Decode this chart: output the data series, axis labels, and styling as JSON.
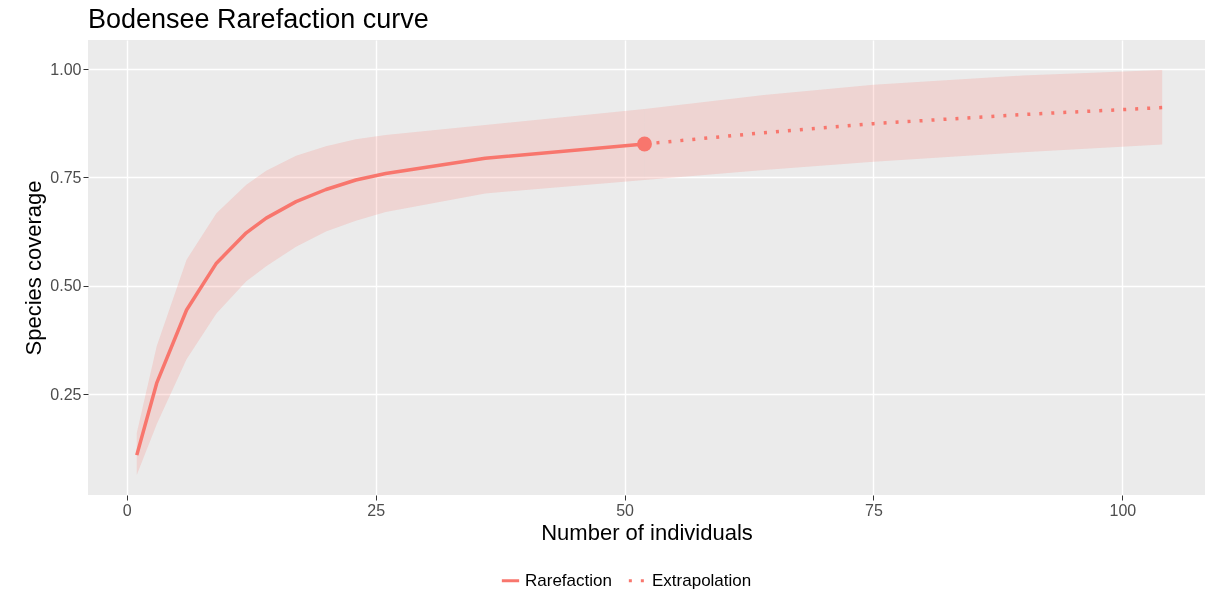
{
  "chart_data": {
    "type": "line",
    "title": "Bodensee Rarefaction curve",
    "xlabel": "Number of individuals",
    "ylabel": "Species coverage",
    "xlim": [
      -3.9,
      108.3
    ],
    "ylim": [
      0.017,
      1.067
    ],
    "xticks": [
      0,
      25,
      50,
      75,
      100
    ],
    "yticks": [
      {
        "value": 0.25,
        "label": "0.25"
      },
      {
        "value": 0.5,
        "label": "0.50"
      },
      {
        "value": 0.75,
        "label": "0.75"
      },
      {
        "value": 1,
        "label": "1.00"
      }
    ],
    "grid": true,
    "legend": "bottom",
    "series": [
      {
        "name": "Rarefaction",
        "color": "#f8766d",
        "line_style": "solid",
        "x": [
          1,
          3,
          6,
          9,
          12,
          14,
          17,
          20,
          23,
          26,
          36,
          52
        ],
        "values": [
          0.109,
          0.275,
          0.444,
          0.552,
          0.622,
          0.656,
          0.694,
          0.722,
          0.744,
          0.759,
          0.794,
          0.827
        ],
        "lower": [
          0.063,
          0.18,
          0.33,
          0.436,
          0.51,
          0.545,
          0.59,
          0.625,
          0.65,
          0.67,
          0.713,
          0.744
        ],
        "upper": [
          0.16,
          0.36,
          0.56,
          0.667,
          0.733,
          0.765,
          0.8,
          0.822,
          0.838,
          0.848,
          0.871,
          0.908
        ]
      },
      {
        "name": "Extrapolation",
        "color": "#f8766d",
        "line_style": "dotted",
        "x": [
          52,
          64,
          75,
          90,
          104
        ],
        "values": [
          0.827,
          0.853,
          0.874,
          0.895,
          0.911
        ],
        "lower": [
          0.744,
          0.767,
          0.786,
          0.808,
          0.826
        ],
        "upper": [
          0.908,
          0.94,
          0.964,
          0.985,
          0.998
        ]
      },
      {
        "type": "scatter",
        "color": "#f8766d",
        "marker": "circle",
        "x": [
          52
        ],
        "values": [
          0.827
        ]
      }
    ]
  }
}
